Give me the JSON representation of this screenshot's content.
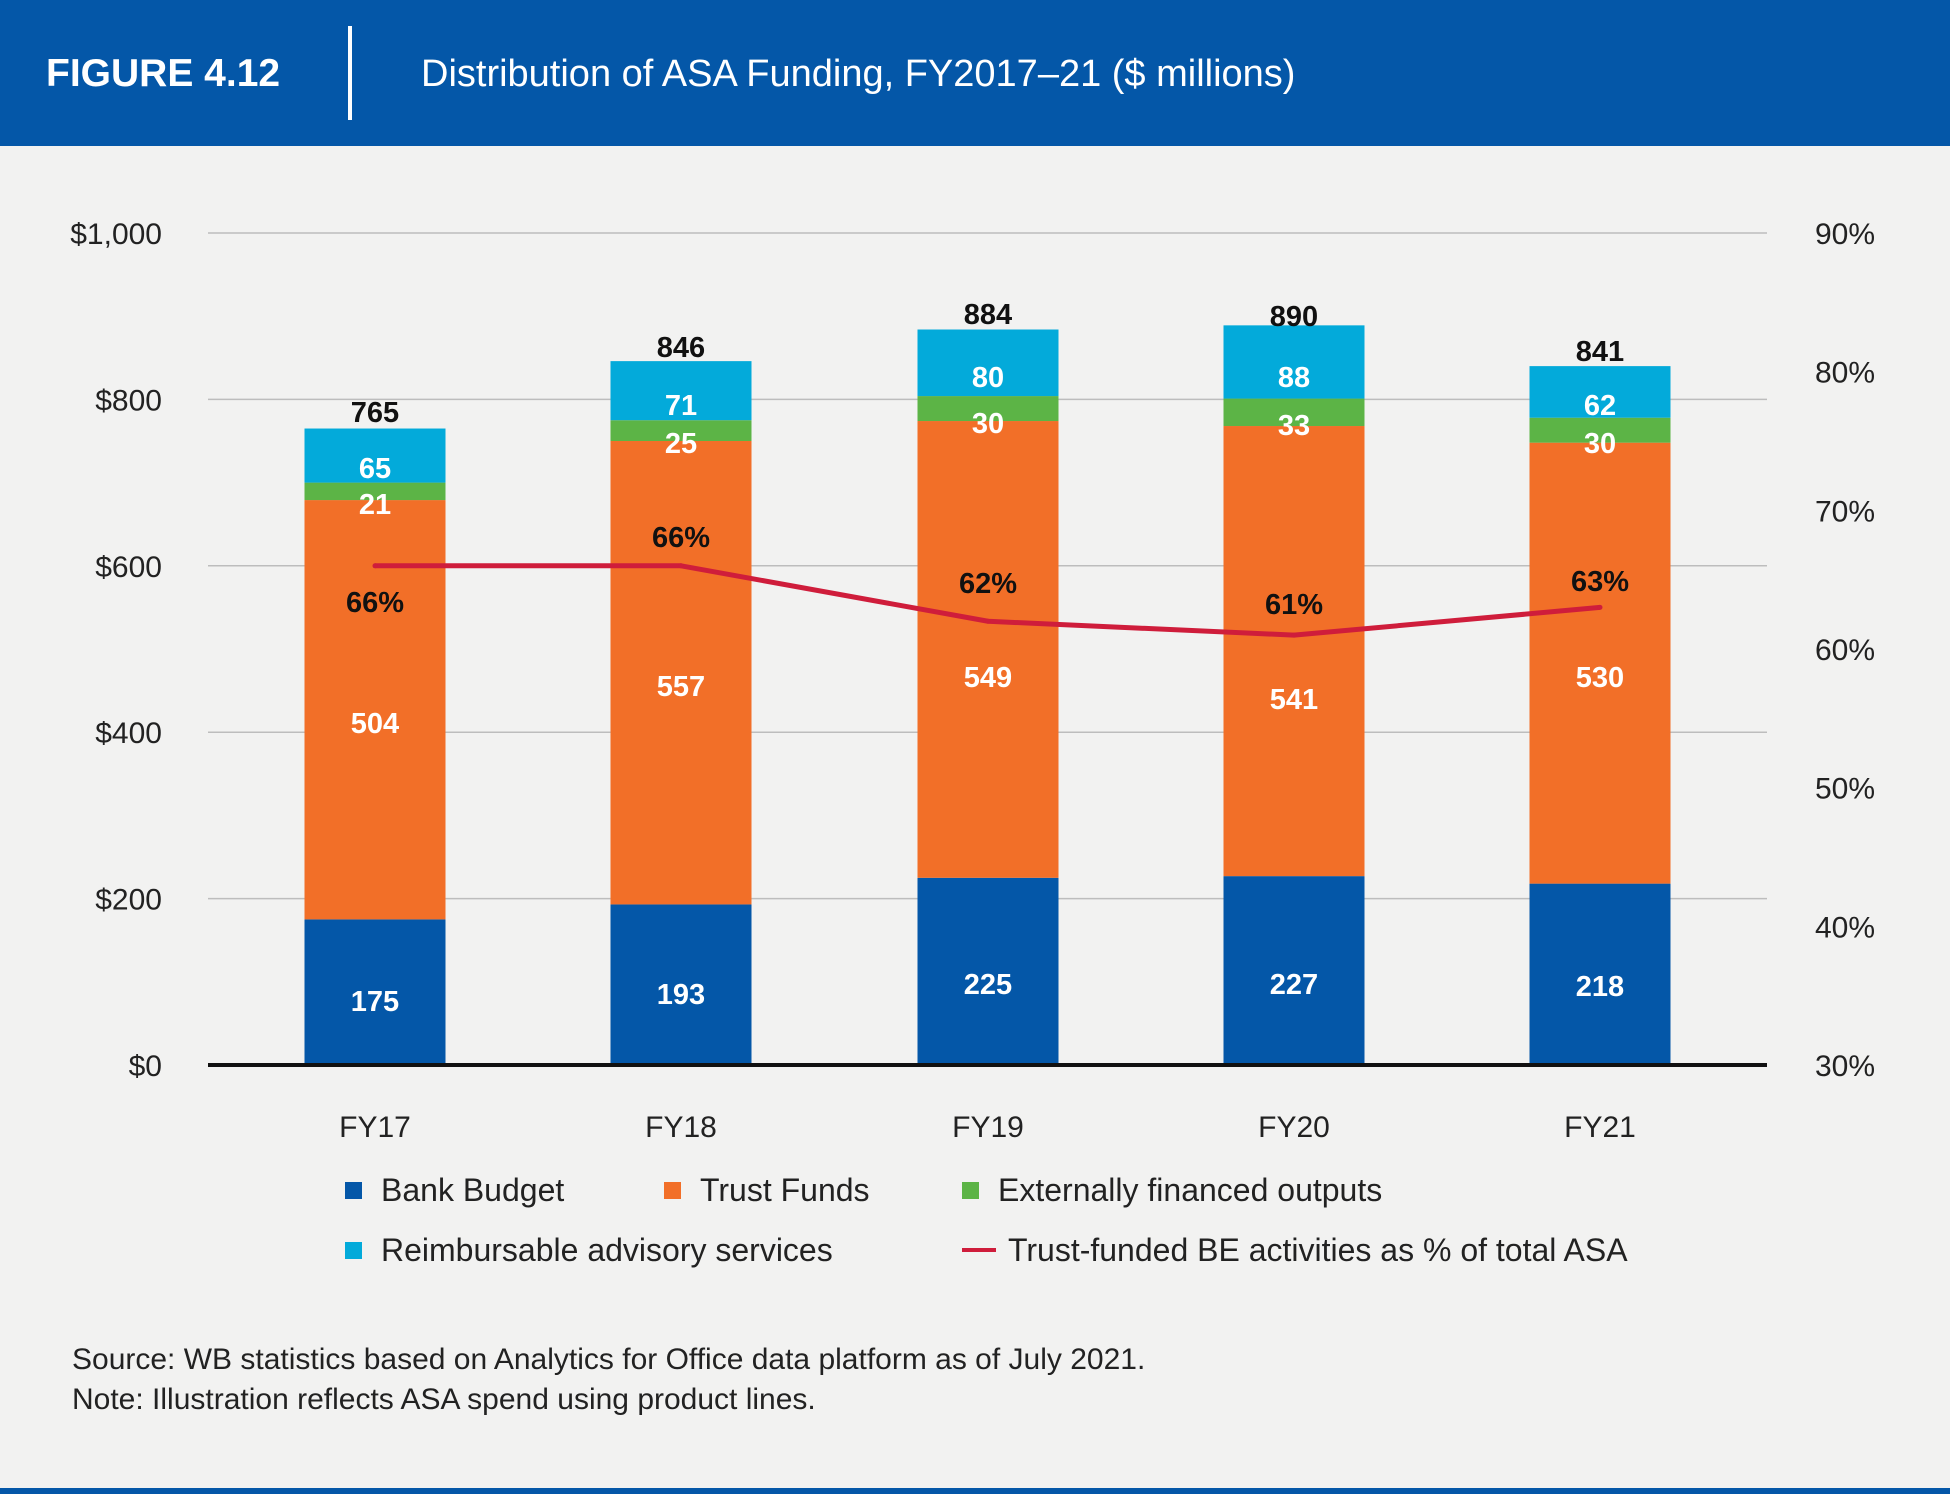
{
  "header": {
    "figure_label": "FIGURE 4.12",
    "title": "Distribution of ASA Funding, FY2017–21 ($ millions)"
  },
  "chart_data": {
    "type": "bar",
    "stacked": true,
    "categories": [
      "FY17",
      "FY18",
      "FY19",
      "FY20",
      "FY21"
    ],
    "series": [
      {
        "name": "Bank Budget",
        "color": "#0457a8",
        "values": [
          175,
          193,
          225,
          227,
          218
        ]
      },
      {
        "name": "Trust Funds",
        "color": "#f26f28",
        "values": [
          504,
          557,
          549,
          541,
          530
        ]
      },
      {
        "name": "Externally financed outputs",
        "color": "#5cb446",
        "values": [
          21,
          25,
          30,
          33,
          30
        ]
      },
      {
        "name": "Reimbursable advisory services",
        "color": "#03aada",
        "values": [
          65,
          71,
          80,
          88,
          62
        ]
      }
    ],
    "totals": [
      765,
      846,
      884,
      890,
      841
    ],
    "line_series": {
      "name": "Trust-funded BE activities as % of total ASA",
      "color": "#cf1d3b",
      "axis": "right",
      "values": [
        66,
        66,
        62,
        61,
        63
      ],
      "labels": [
        "66%",
        "66%",
        "62%",
        "61%",
        "63%"
      ]
    },
    "left_axis": {
      "ylim": [
        0,
        1000
      ],
      "ticks": [
        0,
        200,
        400,
        600,
        800,
        1000
      ],
      "tick_labels": [
        "$0",
        "$200",
        "$400",
        "$600",
        "$800",
        "$1,000"
      ]
    },
    "right_axis": {
      "ylim": [
        30,
        90
      ],
      "ticks": [
        30,
        40,
        50,
        60,
        70,
        80,
        90
      ],
      "tick_labels": [
        "30%",
        "40%",
        "50%",
        "60%",
        "70%",
        "80%",
        "90%"
      ]
    },
    "grid": true,
    "legend_placement": "bottom"
  },
  "legend": {
    "items": [
      {
        "label": "Bank Budget",
        "color": "#0457a8",
        "kind": "swatch"
      },
      {
        "label": "Trust Funds",
        "color": "#f26f28",
        "kind": "swatch"
      },
      {
        "label": "Externally financed outputs",
        "color": "#5cb446",
        "kind": "swatch"
      },
      {
        "label": "Reimbursable advisory services",
        "color": "#03aada",
        "kind": "swatch"
      },
      {
        "label": "Trust-funded BE activities as % of total ASA",
        "color": "#cf1d3b",
        "kind": "line"
      }
    ]
  },
  "notes": {
    "source": "Source: WB statistics based on Analytics for Office data platform as of July 2021.",
    "note": "Note: Illustration reflects ASA spend using product lines."
  },
  "colors": {
    "brand": "#0457a8",
    "background": "#f2f2f1"
  }
}
